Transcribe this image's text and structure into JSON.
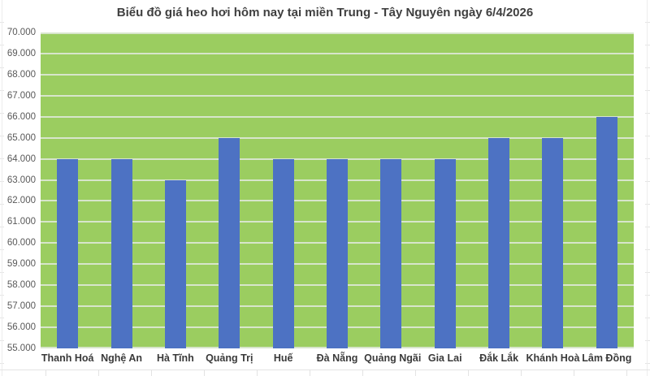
{
  "chart_data": {
    "type": "bar",
    "title": "Biểu đồ giá heo hơi hôm nay tại miền Trung - Tây Nguyên ngày 6/4/2026",
    "categories": [
      "Thanh Hoá",
      "Nghệ An",
      "Hà Tĩnh",
      "Quảng Trị",
      "Huế",
      "Đà Nẵng",
      "Quảng Ngãi",
      "Gia Lai",
      "Đắk Lắk",
      "Khánh Hoà",
      "Lâm Đồng"
    ],
    "values": [
      64000,
      64000,
      63000,
      65000,
      64000,
      64000,
      64000,
      64000,
      65000,
      65000,
      66000
    ],
    "xlabel": "",
    "ylabel": "",
    "ylim": [
      55000,
      70000
    ],
    "ytick_step": 1000,
    "ytick_labels": [
      "70.000",
      "69.000",
      "68.000",
      "67.000",
      "66.000",
      "65.000",
      "64.000",
      "63.000",
      "62.000",
      "61.000",
      "60.000",
      "59.000",
      "58.000",
      "57.000",
      "56.000",
      "55.000"
    ],
    "grid": true,
    "legend_position": "none",
    "colors": {
      "bar": "#4d72c3",
      "plot_bg": "#9bcd60",
      "gridline": "#d7e5cb",
      "title_text": "#3f3f3f",
      "ytick_text": "#595959",
      "xtick_text": "#3a3a3a"
    }
  }
}
